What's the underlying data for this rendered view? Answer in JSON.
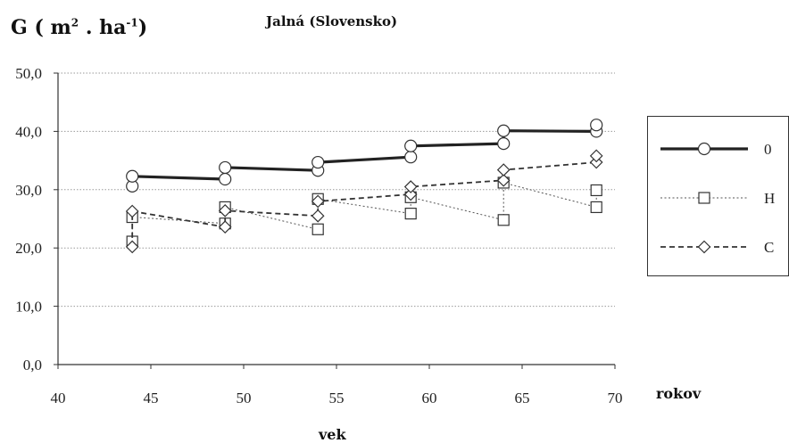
{
  "chart_data": {
    "type": "line",
    "title": "Jalná (Slovensko)",
    "ylabel_prefix": "G ( m",
    "ylabel_sup1": "2",
    "ylabel_mid": " . ha",
    "ylabel_sup2": "-1",
    "ylabel_suffix": ")",
    "xlabel": "vek",
    "x_unit": "rokov",
    "xlim": [
      40,
      70
    ],
    "ylim": [
      0,
      50
    ],
    "x_ticks": [
      "40",
      "45",
      "50",
      "55",
      "60",
      "65",
      "70"
    ],
    "y_ticks": [
      "0,0",
      "10,0",
      "20,0",
      "30,0",
      "40,0",
      "50,0"
    ],
    "grid": "horizontal dotted",
    "legend_position": "right",
    "series": [
      {
        "name": "0",
        "marker": "circle",
        "line": "solid-thick",
        "color": "#222222",
        "points": [
          [
            44,
            30.6
          ],
          [
            44,
            32.3
          ],
          [
            49,
            31.8
          ],
          [
            49,
            33.8
          ],
          [
            54,
            33.3
          ],
          [
            54,
            34.7
          ],
          [
            59,
            35.6
          ],
          [
            59,
            37.5
          ],
          [
            64,
            37.9
          ],
          [
            64,
            40.1
          ],
          [
            69,
            40.0
          ],
          [
            69,
            41.1
          ]
        ]
      },
      {
        "name": "H",
        "marker": "square",
        "line": "dotted-thin",
        "color": "#555555",
        "points": [
          [
            44,
            21.1
          ],
          [
            44,
            25.3
          ],
          [
            49,
            24.2
          ],
          [
            49,
            27.0
          ],
          [
            54,
            23.2
          ],
          [
            54,
            28.4
          ],
          [
            59,
            25.9
          ],
          [
            59,
            28.7
          ],
          [
            64,
            24.8
          ],
          [
            64,
            31.2
          ],
          [
            69,
            27.0
          ],
          [
            69,
            29.9
          ]
        ]
      },
      {
        "name": "C",
        "marker": "diamond",
        "line": "dashed",
        "color": "#333333",
        "points": [
          [
            44,
            20.2
          ],
          [
            44,
            26.3
          ],
          [
            49,
            23.6
          ],
          [
            49,
            26.4
          ],
          [
            54,
            25.5
          ],
          [
            54,
            28.0
          ],
          [
            59,
            29.2
          ],
          [
            59,
            30.5
          ],
          [
            64,
            31.6
          ],
          [
            64,
            33.4
          ],
          [
            69,
            34.7
          ],
          [
            69,
            35.8
          ]
        ]
      }
    ]
  }
}
